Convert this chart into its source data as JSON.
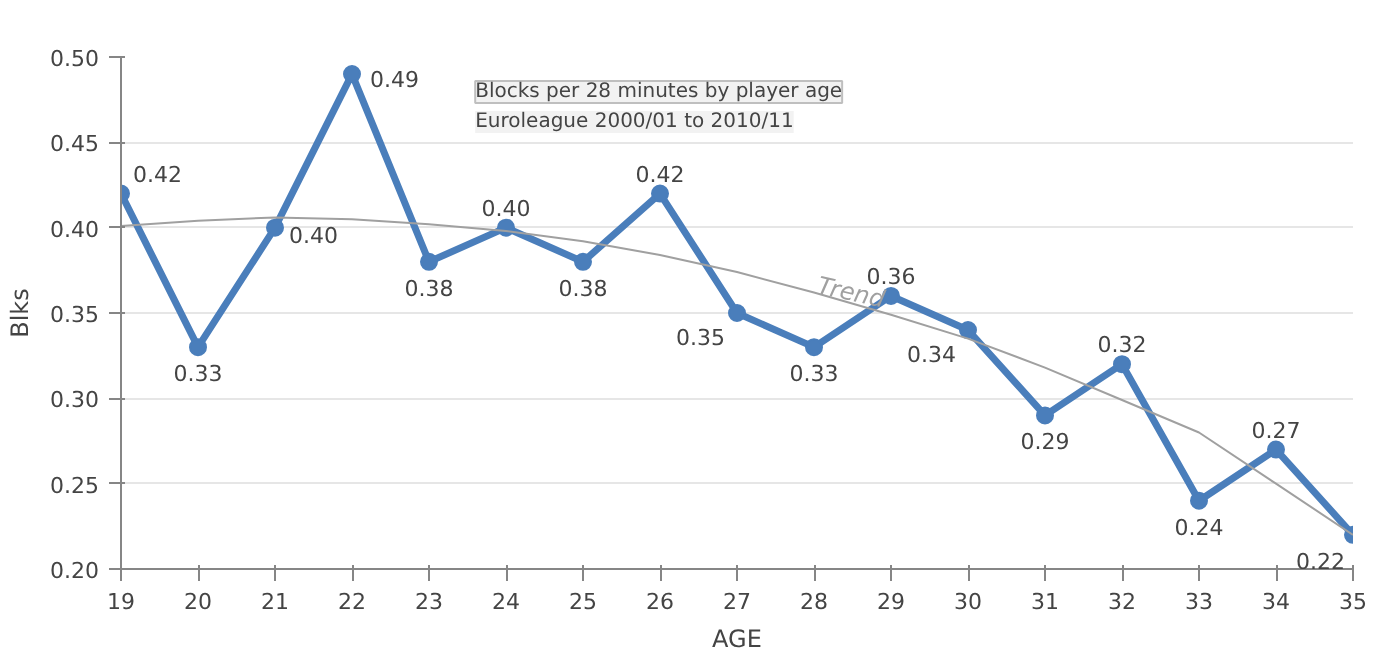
{
  "chart_data": {
    "type": "line",
    "annotations": [
      "Blocks per 28 minutes by player age",
      "Euroleague 2000/01 to 2010/11"
    ],
    "xlabel": "AGE",
    "ylabel": "Blks",
    "x": [
      19,
      20,
      21,
      22,
      23,
      24,
      25,
      26,
      27,
      28,
      29,
      30,
      31,
      32,
      33,
      34,
      35
    ],
    "series": [
      {
        "color": "#4a7ebb",
        "values": [
          0.42,
          0.33,
          0.4,
          0.49,
          0.38,
          0.4,
          0.38,
          0.42,
          0.35,
          0.33,
          0.36,
          0.34,
          0.29,
          0.32,
          0.24,
          0.27,
          0.22
        ],
        "value_labels": [
          "0.42",
          "0.33",
          "0.40",
          "0.49",
          "0.38",
          "0.40",
          "0.38",
          "0.42",
          "0.35",
          "0.33",
          "0.36",
          "0.34",
          "0.29",
          "0.32",
          "0.24",
          "0.27",
          "0.22"
        ],
        "marker": "circle"
      },
      {
        "name": "Trend",
        "color": "#a0a0a0",
        "values": [
          0.401,
          0.404,
          0.406,
          0.405,
          0.402,
          0.398,
          0.392,
          0.384,
          0.374,
          0.362,
          0.349,
          0.335,
          0.318,
          0.299,
          0.28,
          0.25,
          0.22
        ],
        "marker": "none"
      }
    ],
    "xlim": [
      19,
      35
    ],
    "xticks": [
      19,
      20,
      21,
      22,
      23,
      24,
      25,
      26,
      27,
      28,
      29,
      30,
      31,
      32,
      33,
      34,
      35
    ],
    "ylim": [
      0.2,
      0.5
    ],
    "yticks": [
      {
        "value": 0.2,
        "label": "0.20"
      },
      {
        "value": 0.25,
        "label": "0.25"
      },
      {
        "value": 0.3,
        "label": "0.30"
      },
      {
        "value": 0.35,
        "label": "0.35"
      },
      {
        "value": 0.4,
        "label": "0.40"
      },
      {
        "value": 0.45,
        "label": "0.45"
      },
      {
        "value": 0.5,
        "label": "0.50"
      }
    ],
    "grid": "y",
    "line_style": "solid"
  }
}
